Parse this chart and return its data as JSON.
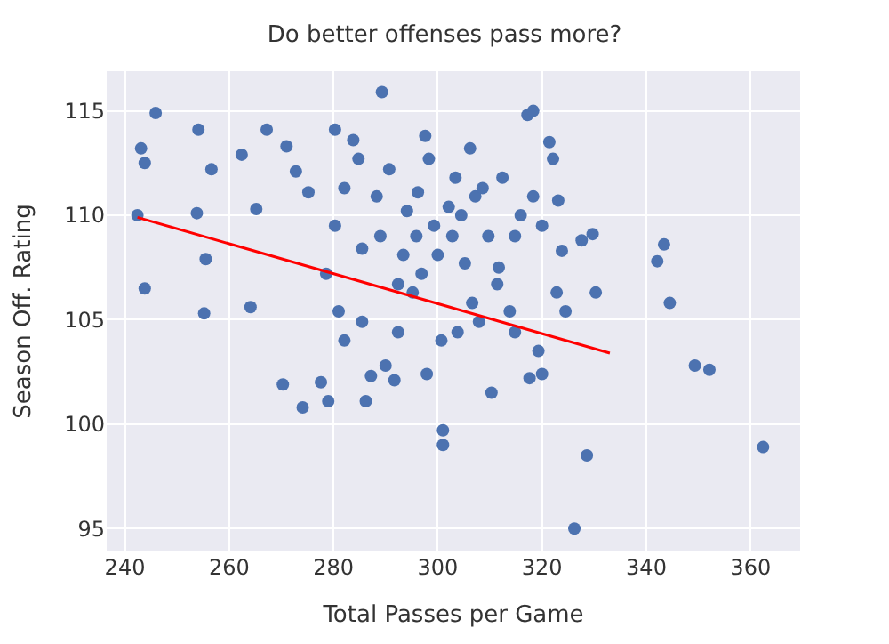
{
  "chart_data": {
    "type": "scatter",
    "title": "Do better offenses pass more?",
    "xlabel": "Total Passes per Game",
    "ylabel": "Season Off. Rating",
    "xlim": [
      236.5,
      369.5
    ],
    "ylim": [
      93.9,
      116.9
    ],
    "xticks": [
      240,
      260,
      280,
      300,
      320,
      340,
      360
    ],
    "yticks": [
      95,
      100,
      105,
      110,
      115
    ],
    "grid": true,
    "marker": "circle",
    "series": [
      {
        "color": "#4c72b0",
        "x": [
          242.4,
          243.1,
          243.8,
          245.9,
          243.8,
          254.1,
          253.8,
          255.5,
          256.6,
          255.2,
          262.4,
          265.2,
          267.2,
          264.1,
          271.0,
          272.8,
          270.3,
          274.1,
          275.2,
          277.6,
          279.0,
          280.3,
          280.3,
          281.0,
          282.1,
          283.8,
          284.8,
          285.5,
          286.2,
          287.2,
          289.3,
          288.3,
          290.7,
          290.0,
          291.7,
          292.4,
          293.4,
          294.1,
          295.2,
          296.2,
          297.6,
          298.3,
          297.9,
          300.7,
          301.0,
          301.0,
          302.1,
          302.8,
          303.4,
          305.2,
          306.2,
          306.6,
          307.2,
          308.6,
          309.7,
          310.3,
          311.7,
          312.4,
          313.8,
          314.8,
          315.9,
          317.2,
          317.6,
          318.3,
          319.3,
          320.0,
          321.4,
          322.1,
          323.1,
          323.8,
          324.5,
          326.2,
          327.6,
          328.6,
          329.7,
          330.3,
          342.1,
          343.4,
          349.3,
          352.1,
          362.4,
          344.5,
          299.3,
          300.0,
          295.9,
          304.5,
          296.9,
          311.4,
          307.9,
          292.4,
          285.5,
          314.8,
          322.8,
          303.8,
          289.0,
          278.6,
          282.1,
          318.3,
          320.0
        ],
        "values": [
          110.0,
          113.2,
          112.5,
          114.9,
          106.5,
          114.1,
          110.1,
          107.9,
          112.2,
          105.3,
          112.9,
          110.3,
          114.1,
          105.6,
          113.3,
          112.1,
          101.9,
          100.8,
          111.1,
          102.0,
          101.1,
          109.5,
          114.1,
          105.4,
          111.3,
          113.6,
          112.7,
          108.4,
          101.1,
          102.3,
          115.9,
          110.9,
          112.2,
          102.8,
          102.1,
          106.7,
          108.1,
          110.2,
          106.3,
          111.1,
          113.8,
          112.7,
          102.4,
          104.0,
          99.7,
          99.0,
          110.4,
          109.0,
          111.8,
          107.7,
          113.2,
          105.8,
          110.9,
          111.3,
          109.0,
          101.5,
          107.5,
          111.8,
          105.4,
          109.0,
          110.0,
          114.8,
          102.2,
          115.0,
          103.5,
          102.4,
          113.5,
          112.7,
          110.7,
          108.3,
          105.4,
          95.0,
          108.8,
          98.5,
          109.1,
          106.3,
          107.8,
          108.6,
          102.8,
          102.6,
          98.9,
          105.8,
          109.5,
          108.1,
          109.0,
          110.0,
          107.2,
          106.7,
          104.9,
          104.4,
          104.9,
          104.4,
          106.3,
          104.4,
          109.0,
          107.2,
          104.0,
          110.9,
          109.5
        ]
      },
      {
        "type": "line",
        "color": "#ff0000",
        "x": [
          242.4,
          333.0
        ],
        "values": [
          109.9,
          103.4
        ],
        "line_style": "solid",
        "marker": "none"
      }
    ]
  }
}
